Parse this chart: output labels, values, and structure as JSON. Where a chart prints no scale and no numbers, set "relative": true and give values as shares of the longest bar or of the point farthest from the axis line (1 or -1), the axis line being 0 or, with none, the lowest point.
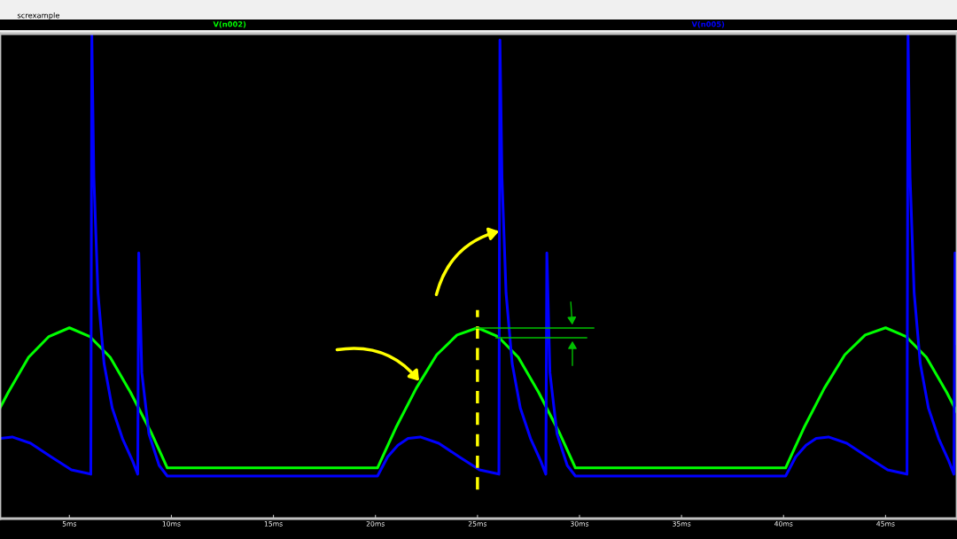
{
  "chart_data": {
    "type": "line",
    "title": "screxample",
    "relative": true,
    "xlim": [
      1.6,
      48.5
    ],
    "xticks": [
      {
        "value": 5,
        "label": "5ms"
      },
      {
        "value": 10,
        "label": "10ms"
      },
      {
        "value": 15,
        "label": "15ms"
      },
      {
        "value": 20,
        "label": "20ms"
      },
      {
        "value": 25,
        "label": "25ms"
      },
      {
        "value": 30,
        "label": "30ms"
      },
      {
        "value": 35,
        "label": "35ms"
      },
      {
        "value": 40,
        "label": "40ms"
      },
      {
        "value": 45,
        "label": "45ms"
      }
    ],
    "grid": false,
    "series": [
      {
        "name": "V(n002)",
        "color": "#00ff00",
        "x": [
          1.6,
          2,
          3,
          4,
          5,
          6,
          7,
          8,
          9,
          9.8,
          20.1,
          21,
          22,
          23,
          24,
          25,
          26,
          27,
          28,
          29,
          29.8,
          40.1,
          41,
          42,
          43,
          44,
          45,
          46,
          47,
          48,
          48.5
        ],
        "values": [
          0.229,
          0.261,
          0.334,
          0.377,
          0.395,
          0.377,
          0.334,
          0.261,
          0.179,
          0.105,
          0.105,
          0.188,
          0.27,
          0.339,
          0.38,
          0.395,
          0.377,
          0.334,
          0.261,
          0.179,
          0.105,
          0.105,
          0.188,
          0.27,
          0.339,
          0.38,
          0.395,
          0.377,
          0.334,
          0.261,
          0.22
        ]
      },
      {
        "name": "V(n005)",
        "color": "#0000ff",
        "x": [
          1.6,
          2.2,
          3.1,
          4.1,
          5.1,
          6.05,
          6.1,
          6.2,
          6.4,
          6.7,
          7.1,
          7.6,
          8.1,
          8.35,
          8.4,
          8.55,
          8.9,
          9.4,
          9.8,
          20.1,
          20.6,
          21.1,
          21.6,
          22.2,
          23.1,
          24.1,
          25.1,
          26.05,
          26.1,
          26.2,
          26.4,
          26.7,
          27.1,
          27.6,
          28.1,
          28.35,
          28.4,
          28.55,
          28.9,
          29.4,
          29.8,
          40.1,
          40.6,
          41.1,
          41.6,
          42.2,
          43.1,
          44.1,
          45.1,
          46.05,
          46.1,
          46.2,
          46.4,
          46.7,
          47.1,
          47.6,
          48.1,
          48.35,
          48.4,
          48.5
        ],
        "values": [
          0.166,
          0.169,
          0.156,
          0.128,
          0.101,
          0.092,
          1.0,
          0.706,
          0.467,
          0.321,
          0.229,
          0.166,
          0.119,
          0.092,
          0.55,
          0.302,
          0.175,
          0.11,
          0.088,
          0.088,
          0.128,
          0.152,
          0.166,
          0.169,
          0.156,
          0.128,
          0.101,
          0.092,
          0.991,
          0.706,
          0.467,
          0.321,
          0.229,
          0.166,
          0.119,
          0.092,
          0.55,
          0.302,
          0.175,
          0.11,
          0.088,
          0.088,
          0.128,
          0.152,
          0.166,
          0.169,
          0.156,
          0.128,
          0.101,
          0.092,
          1.0,
          0.706,
          0.467,
          0.321,
          0.229,
          0.166,
          0.119,
          0.092,
          0.55,
          0.362
        ]
      }
    ],
    "ref_lines": [
      {
        "axis": "x",
        "value": 25,
        "color": "#ffff00",
        "line_style": "dashed"
      }
    ]
  }
}
